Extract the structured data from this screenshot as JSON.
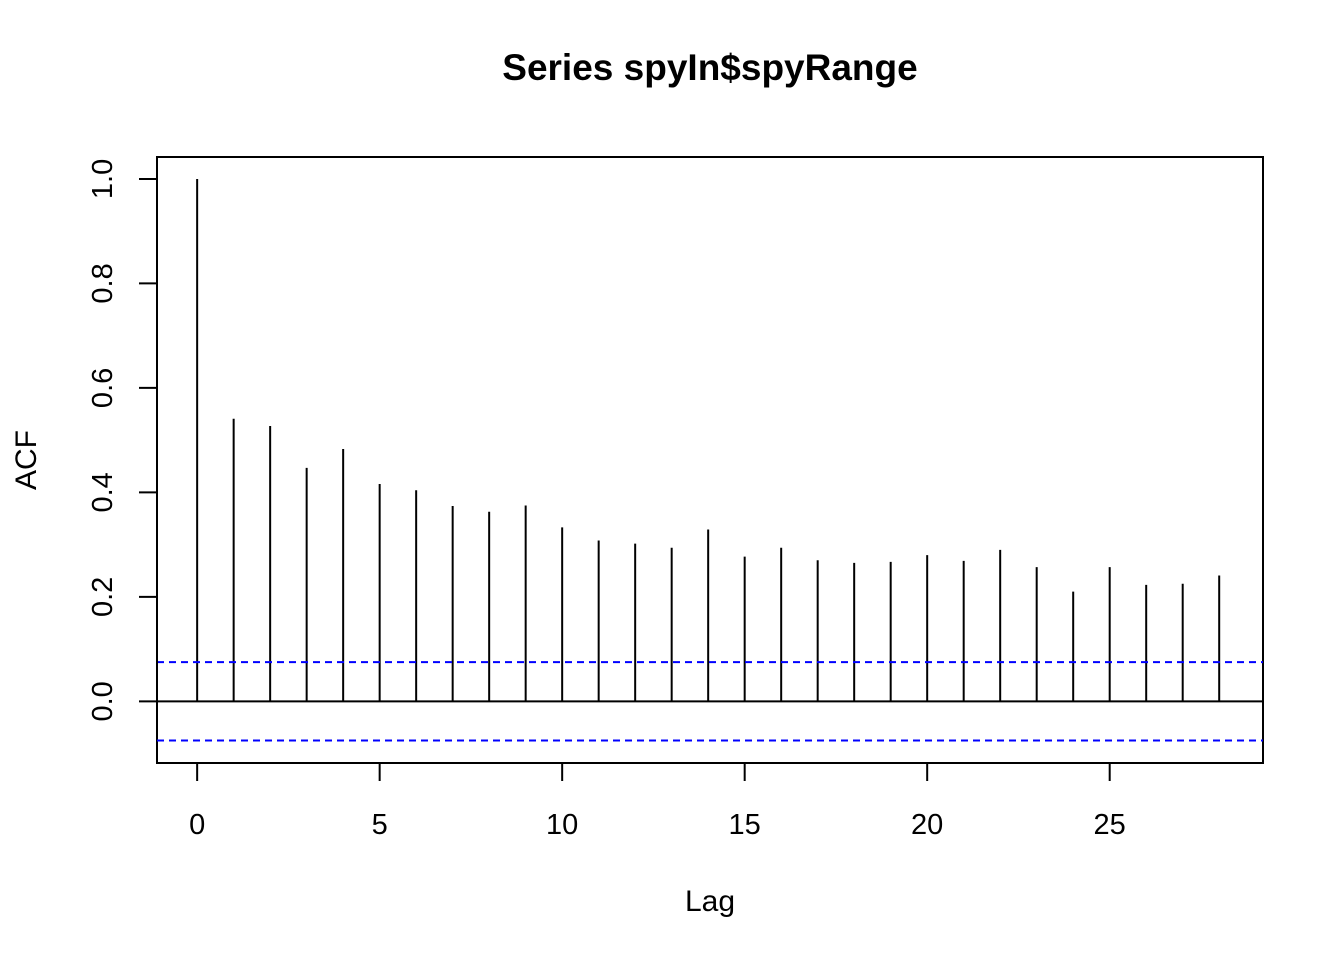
{
  "chart_data": {
    "type": "bar",
    "title": "Series  spyIn$spyRange",
    "xlabel": "Lag",
    "ylabel": "ACF",
    "xlim": [
      -1.1,
      29.2
    ],
    "ylim": [
      -0.118,
      1.042
    ],
    "x_ticks": [
      0,
      5,
      10,
      15,
      20,
      25
    ],
    "x_tick_labels": [
      "0",
      "5",
      "10",
      "15",
      "20",
      "25"
    ],
    "y_ticks": [
      0.0,
      0.2,
      0.4,
      0.6,
      0.8,
      1.0
    ],
    "y_tick_labels": [
      "0.0",
      "0.2",
      "0.4",
      "0.6",
      "0.8",
      "1.0"
    ],
    "lags": [
      0,
      1,
      2,
      3,
      4,
      5,
      6,
      7,
      8,
      9,
      10,
      11,
      12,
      13,
      14,
      15,
      16,
      17,
      18,
      19,
      20,
      21,
      22,
      23,
      24,
      25,
      26,
      27,
      28
    ],
    "values": [
      1.0,
      0.541,
      0.527,
      0.447,
      0.483,
      0.416,
      0.404,
      0.374,
      0.363,
      0.375,
      0.333,
      0.308,
      0.302,
      0.294,
      0.329,
      0.277,
      0.294,
      0.27,
      0.265,
      0.267,
      0.28,
      0.269,
      0.29,
      0.257,
      0.21,
      0.257,
      0.223,
      0.225,
      0.241
    ],
    "confidence_bound": 0.075,
    "zero_line": true,
    "grid": false,
    "colors": {
      "bars": "#000000",
      "bounds": "#0000ff",
      "frame": "#000000"
    }
  }
}
